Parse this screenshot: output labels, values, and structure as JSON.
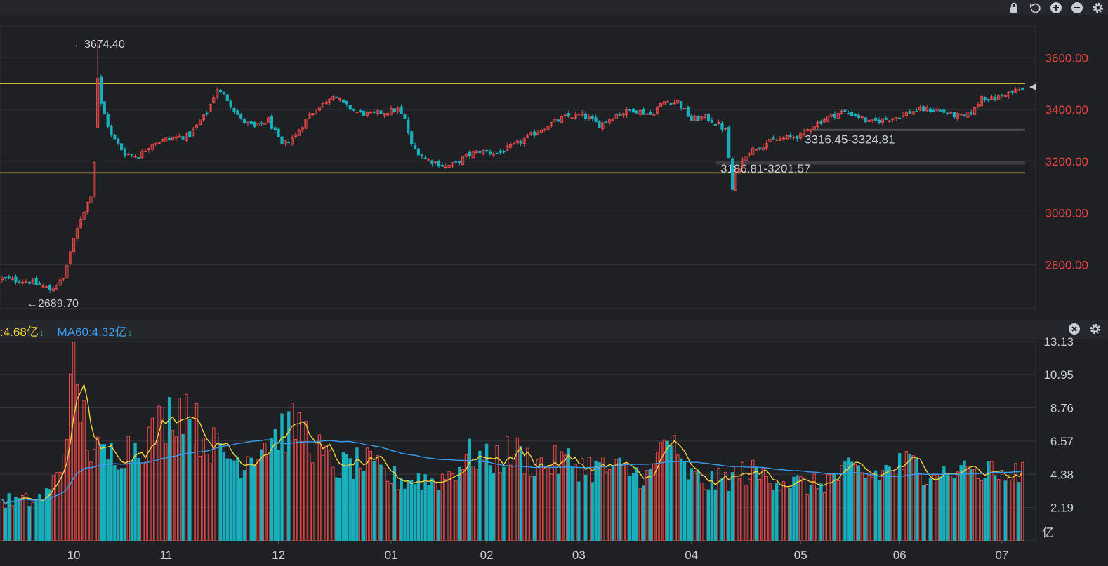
{
  "toolbar": {
    "icons": [
      "lock-icon",
      "undo-icon",
      "zoom-in-icon",
      "zoom-out-icon",
      "settings-icon"
    ]
  },
  "volume_panel": {
    "ma_short_label": ":4.68亿",
    "ma_long_label": "MA60:4.32亿",
    "unit": "亿",
    "icons": [
      "close-icon",
      "settings-icon"
    ]
  },
  "colors": {
    "background": "#1f2024",
    "up": "#e84a4a",
    "down": "#19aebb",
    "ma_short": "#f2d23c",
    "ma60": "#3a9bec",
    "level_line": "#e6c73a",
    "price_axis_text": "#ec4242"
  },
  "chart_data": [
    {
      "type": "candlestick",
      "price_axis_ticks": [
        "3600.00",
        "3400.00",
        "3200.00",
        "3000.00",
        "2800.00"
      ],
      "x_tick_labels": [
        "10",
        "11",
        "12",
        "01",
        "02",
        "03",
        "04",
        "05",
        "06",
        "07"
      ],
      "ylim": [
        2630,
        3720
      ],
      "horizontal_levels": [
        3500,
        3155
      ],
      "annotations": [
        {
          "text": "←3674.40",
          "value": 3674.4
        },
        {
          "text": "←2689.70",
          "value": 2689.7
        },
        {
          "text": "3316.45-3324.81",
          "value": 3320
        },
        {
          "text": "3186.81-3201.57",
          "value": 3194
        }
      ],
      "close_path_anchors": [
        [
          0,
          2745
        ],
        [
          8,
          2735
        ],
        [
          14,
          2705
        ],
        [
          18,
          2745
        ],
        [
          20,
          2850
        ],
        [
          23,
          2980
        ],
        [
          26,
          3070
        ],
        [
          27,
          3200
        ],
        [
          28,
          3550
        ],
        [
          29,
          3420
        ],
        [
          32,
          3300
        ],
        [
          36,
          3230
        ],
        [
          40,
          3220
        ],
        [
          44,
          3270
        ],
        [
          50,
          3290
        ],
        [
          55,
          3300
        ],
        [
          60,
          3390
        ],
        [
          63,
          3480
        ],
        [
          66,
          3440
        ],
        [
          70,
          3360
        ],
        [
          74,
          3330
        ],
        [
          78,
          3360
        ],
        [
          82,
          3260
        ],
        [
          86,
          3300
        ],
        [
          90,
          3380
        ],
        [
          94,
          3420
        ],
        [
          97,
          3460
        ],
        [
          100,
          3420
        ],
        [
          104,
          3390
        ],
        [
          108,
          3380
        ],
        [
          112,
          3390
        ],
        [
          116,
          3400
        ],
        [
          118,
          3360
        ],
        [
          120,
          3260
        ],
        [
          124,
          3210
        ],
        [
          130,
          3180
        ],
        [
          133,
          3190
        ],
        [
          136,
          3220
        ],
        [
          140,
          3240
        ],
        [
          145,
          3230
        ],
        [
          150,
          3260
        ],
        [
          155,
          3300
        ],
        [
          160,
          3340
        ],
        [
          165,
          3370
        ],
        [
          170,
          3380
        ],
        [
          175,
          3340
        ],
        [
          180,
          3380
        ],
        [
          185,
          3400
        ],
        [
          190,
          3380
        ],
        [
          194,
          3430
        ],
        [
          198,
          3430
        ],
        [
          202,
          3360
        ],
        [
          206,
          3370
        ],
        [
          210,
          3340
        ],
        [
          212,
          3320
        ],
        [
          214,
          3110
        ],
        [
          216,
          3180
        ],
        [
          218,
          3230
        ],
        [
          222,
          3260
        ],
        [
          226,
          3280
        ],
        [
          230,
          3290
        ],
        [
          234,
          3300
        ],
        [
          238,
          3340
        ],
        [
          242,
          3370
        ],
        [
          246,
          3390
        ],
        [
          250,
          3380
        ],
        [
          254,
          3350
        ],
        [
          258,
          3360
        ],
        [
          262,
          3370
        ],
        [
          266,
          3390
        ],
        [
          270,
          3400
        ],
        [
          274,
          3400
        ],
        [
          278,
          3380
        ],
        [
          282,
          3370
        ],
        [
          285,
          3400
        ],
        [
          287,
          3450
        ],
        [
          290,
          3440
        ],
        [
          294,
          3460
        ],
        [
          298,
          3475
        ]
      ]
    },
    {
      "type": "bar",
      "name": "volume",
      "y_tick_labels": [
        "13.13",
        "10.95",
        "8.76",
        "6.57",
        "4.38",
        "2.19"
      ],
      "ylim": [
        0,
        13.13
      ],
      "unit": "亿",
      "volume_anchors": [
        [
          0,
          2.6
        ],
        [
          10,
          2.6
        ],
        [
          14,
          3.2
        ],
        [
          16,
          4.5
        ],
        [
          18,
          5.8
        ],
        [
          20,
          11
        ],
        [
          21,
          13.1
        ],
        [
          22,
          9.5
        ],
        [
          24,
          8.0
        ],
        [
          26,
          6.0
        ],
        [
          30,
          5.5
        ],
        [
          36,
          6.0
        ],
        [
          42,
          6.5
        ],
        [
          46,
          7.5
        ],
        [
          50,
          8.6
        ],
        [
          54,
          9.0
        ],
        [
          58,
          7.0
        ],
        [
          62,
          6.2
        ],
        [
          66,
          5.6
        ],
        [
          70,
          5.2
        ],
        [
          74,
          6.0
        ],
        [
          78,
          6.6
        ],
        [
          82,
          7.2
        ],
        [
          86,
          7.5
        ],
        [
          90,
          6.8
        ],
        [
          94,
          5.5
        ],
        [
          98,
          4.8
        ],
        [
          102,
          4.9
        ],
        [
          106,
          5.1
        ],
        [
          110,
          4.6
        ],
        [
          114,
          4.1
        ],
        [
          118,
          4.0
        ],
        [
          122,
          4.1
        ],
        [
          126,
          3.9
        ],
        [
          130,
          4.2
        ],
        [
          134,
          5.0
        ],
        [
          138,
          5.7
        ],
        [
          142,
          5.2
        ],
        [
          146,
          5.5
        ],
        [
          150,
          5.9
        ],
        [
          154,
          5.3
        ],
        [
          158,
          5.0
        ],
        [
          162,
          5.1
        ],
        [
          166,
          5.2
        ],
        [
          170,
          4.9
        ],
        [
          174,
          4.8
        ],
        [
          178,
          4.7
        ],
        [
          182,
          4.6
        ],
        [
          186,
          4.4
        ],
        [
          190,
          4.2
        ],
        [
          194,
          6.6
        ],
        [
          196,
          6.7
        ],
        [
          198,
          5.0
        ],
        [
          202,
          4.2
        ],
        [
          206,
          3.8
        ],
        [
          210,
          3.9
        ],
        [
          214,
          4.2
        ],
        [
          218,
          4.5
        ],
        [
          222,
          4.3
        ],
        [
          226,
          4.2
        ],
        [
          230,
          3.9
        ],
        [
          234,
          3.7
        ],
        [
          238,
          3.6
        ],
        [
          242,
          4.0
        ],
        [
          246,
          4.3
        ],
        [
          250,
          4.6
        ],
        [
          254,
          4.2
        ],
        [
          258,
          4.5
        ],
        [
          262,
          4.9
        ],
        [
          266,
          5.0
        ],
        [
          270,
          4.7
        ],
        [
          274,
          4.8
        ]
      ]
    }
  ]
}
